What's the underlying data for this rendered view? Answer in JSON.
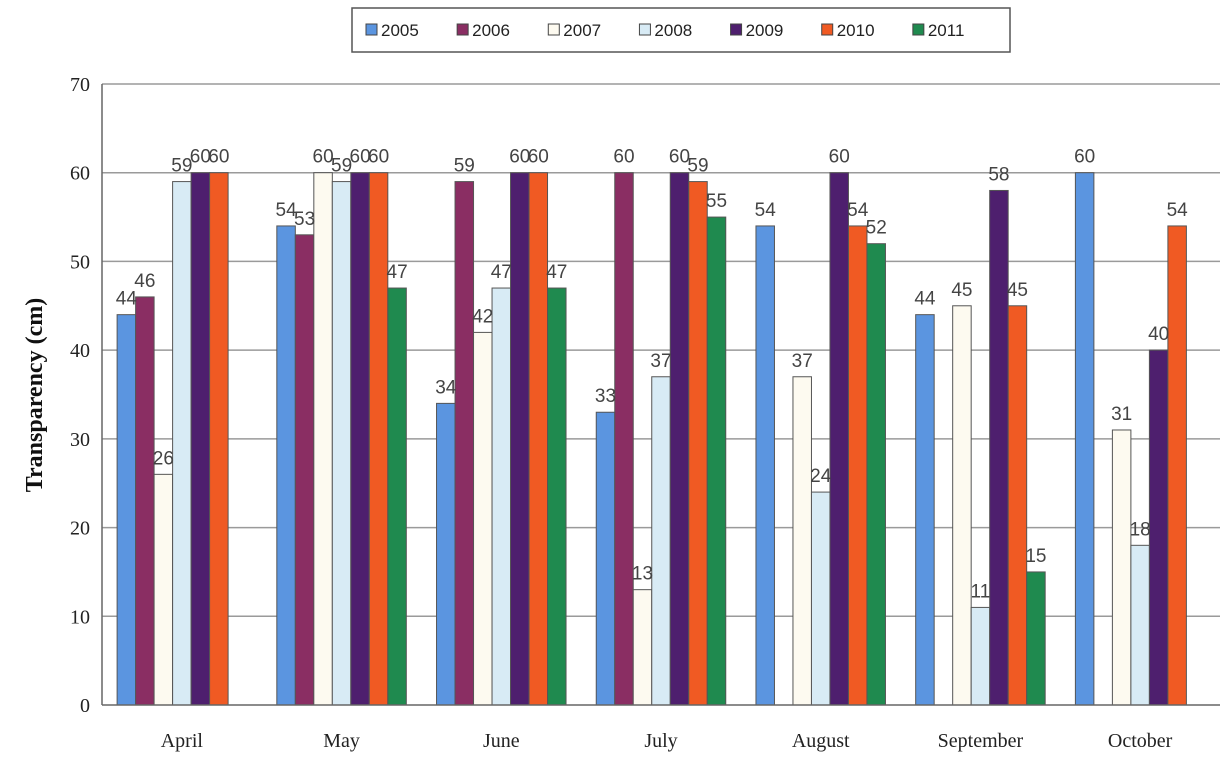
{
  "chart_data": {
    "type": "bar",
    "ylabel": "Transparency (cm)",
    "ylim": [
      0,
      70
    ],
    "yticks": [
      0,
      10,
      20,
      30,
      40,
      50,
      60,
      70
    ],
    "grid": true,
    "legend_position": "top",
    "categories": [
      "April",
      "May",
      "June",
      "July",
      "August",
      "September",
      "October"
    ],
    "series": [
      {
        "name": "2005",
        "color": "#5b95e0",
        "values": [
          44,
          54,
          34,
          33,
          54,
          44,
          60
        ]
      },
      {
        "name": "2006",
        "color": "#8a2e63",
        "values": [
          46,
          53,
          59,
          60,
          null,
          null,
          null
        ]
      },
      {
        "name": "2007",
        "color": "#fdfaf0",
        "values": [
          26,
          60,
          42,
          13,
          37,
          45,
          31
        ]
      },
      {
        "name": "2008",
        "color": "#d8ebf5",
        "values": [
          59,
          59,
          47,
          37,
          24,
          11,
          18
        ]
      },
      {
        "name": "2009",
        "color": "#4e1f6e",
        "values": [
          60,
          60,
          60,
          60,
          60,
          58,
          40
        ]
      },
      {
        "name": "2010",
        "color": "#f05a23",
        "values": [
          60,
          60,
          60,
          59,
          54,
          45,
          54
        ]
      },
      {
        "name": "2011",
        "color": "#1f8a4f",
        "values": [
          null,
          47,
          47,
          55,
          52,
          15,
          null
        ]
      }
    ]
  }
}
